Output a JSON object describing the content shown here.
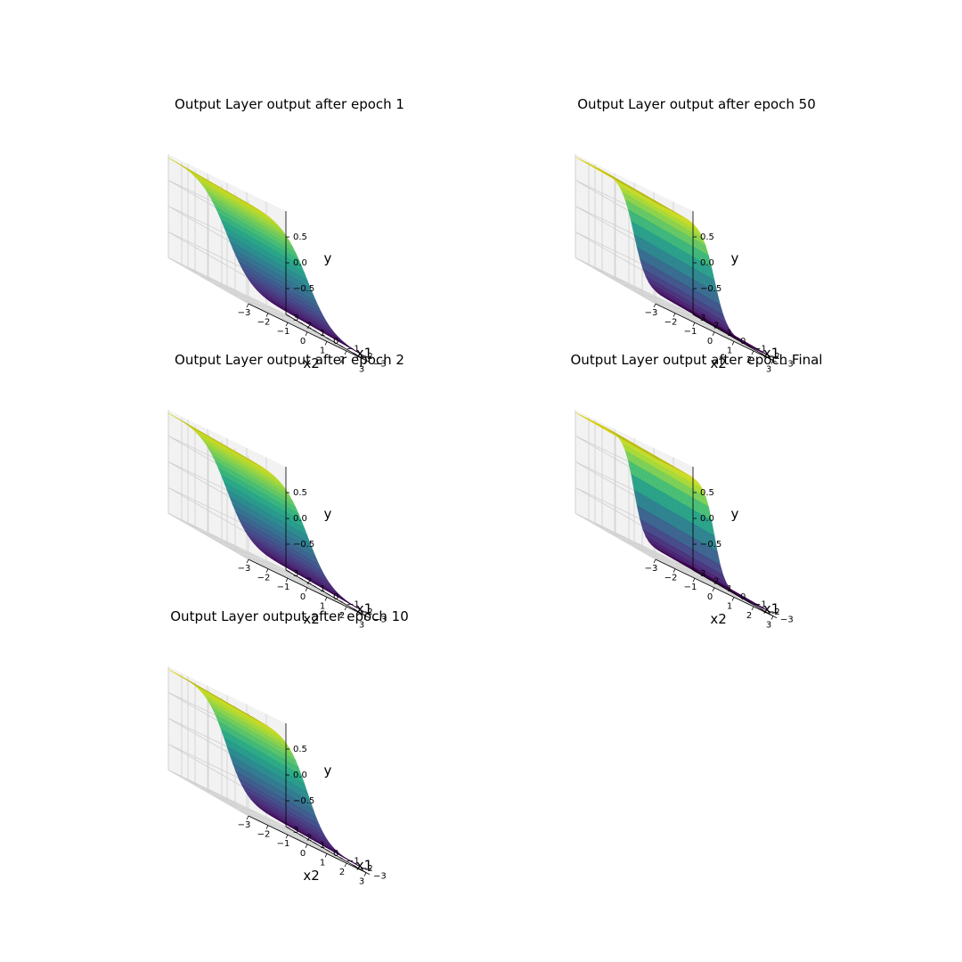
{
  "figure": {
    "title": "",
    "layout": "3 rows x 2 columns, subplot at row 3 column 2 empty"
  },
  "chart_data": [
    {
      "type": "surface",
      "title": "Output Layer output after epoch 1",
      "xlabel": "x1",
      "ylabel": "x2",
      "zlabel": "y",
      "x_ticks": [
        "−3",
        "−2",
        "−1",
        "0",
        "1",
        "2",
        "3"
      ],
      "y_ticks": [
        "−3",
        "−2",
        "−1",
        "0",
        "1",
        "2",
        "3"
      ],
      "z_ticks": [
        "−0.5",
        "0.0",
        "0.5"
      ],
      "xlim": [
        -3,
        3
      ],
      "ylim": [
        -3,
        3
      ],
      "zlim": [
        -1,
        1
      ],
      "surface": {
        "function": "z = tanh(k * (-x2)) varying along x2, constant along x1",
        "steepness": 0.8
      },
      "colormap": "viridis"
    },
    {
      "type": "surface",
      "title": "Output Layer output after epoch 50",
      "xlabel": "x1",
      "ylabel": "x2",
      "zlabel": "y",
      "x_ticks": [
        "−3",
        "−2",
        "−1",
        "0",
        "1",
        "2",
        "3"
      ],
      "y_ticks": [
        "−3",
        "−2",
        "−1",
        "0",
        "1",
        "2",
        "3"
      ],
      "z_ticks": [
        "−0.5",
        "0.0",
        "0.5"
      ],
      "xlim": [
        -3,
        3
      ],
      "ylim": [
        -3,
        3
      ],
      "zlim": [
        -1,
        1
      ],
      "surface": {
        "function": "z = tanh(k * (-x2)) varying along x2, constant along x1",
        "steepness": 1.6
      },
      "colormap": "viridis"
    },
    {
      "type": "surface",
      "title": "Output Layer output after epoch 2",
      "xlabel": "x1",
      "ylabel": "x2",
      "zlabel": "y",
      "x_ticks": [
        "−3",
        "−2",
        "−1",
        "0",
        "1",
        "2",
        "3"
      ],
      "y_ticks": [
        "−3",
        "−2",
        "−1",
        "0",
        "1",
        "2",
        "3"
      ],
      "z_ticks": [
        "−0.5",
        "0.0",
        "0.5"
      ],
      "xlim": [
        -3,
        3
      ],
      "ylim": [
        -3,
        3
      ],
      "zlim": [
        -1,
        1
      ],
      "surface": {
        "function": "z = tanh(k * (-x2)) varying along x2, constant along x1",
        "steepness": 0.85
      },
      "colormap": "viridis"
    },
    {
      "type": "surface",
      "title": "Output Layer output after epoch Final",
      "xlabel": "x1",
      "ylabel": "x2",
      "zlabel": "y",
      "x_ticks": [
        "−3",
        "−2",
        "−1",
        "0",
        "1",
        "2",
        "3"
      ],
      "y_ticks": [
        "−3",
        "−2",
        "−1",
        "0",
        "1",
        "2",
        "3"
      ],
      "z_ticks": [
        "−0.5",
        "0.0",
        "0.5"
      ],
      "xlim": [
        -3,
        3
      ],
      "ylim": [
        -3,
        3
      ],
      "zlim": [
        -1,
        1
      ],
      "surface": {
        "function": "z = tanh(k * (-x2)) varying along x2, constant along x1",
        "steepness": 2.0
      },
      "colormap": "viridis"
    },
    {
      "type": "surface",
      "title": "Output Layer output after epoch 10",
      "xlabel": "x1",
      "ylabel": "x2",
      "zlabel": "y",
      "x_ticks": [
        "−3",
        "−2",
        "−1",
        "0",
        "1",
        "2",
        "3"
      ],
      "y_ticks": [
        "−3",
        "−2",
        "−1",
        "0",
        "1",
        "2",
        "3"
      ],
      "z_ticks": [
        "−0.5",
        "0.0",
        "0.5"
      ],
      "xlim": [
        -3,
        3
      ],
      "ylim": [
        -3,
        3
      ],
      "zlim": [
        -1,
        1
      ],
      "surface": {
        "function": "z = tanh(k * (-x2)) varying along x2, constant along x1",
        "steepness": 1.0
      },
      "colormap": "viridis"
    }
  ],
  "colors": {
    "pane": "#f2f2f2",
    "pane_side": "#e9e9e9",
    "grid": "#d0d0d0",
    "axis": "#000000"
  }
}
